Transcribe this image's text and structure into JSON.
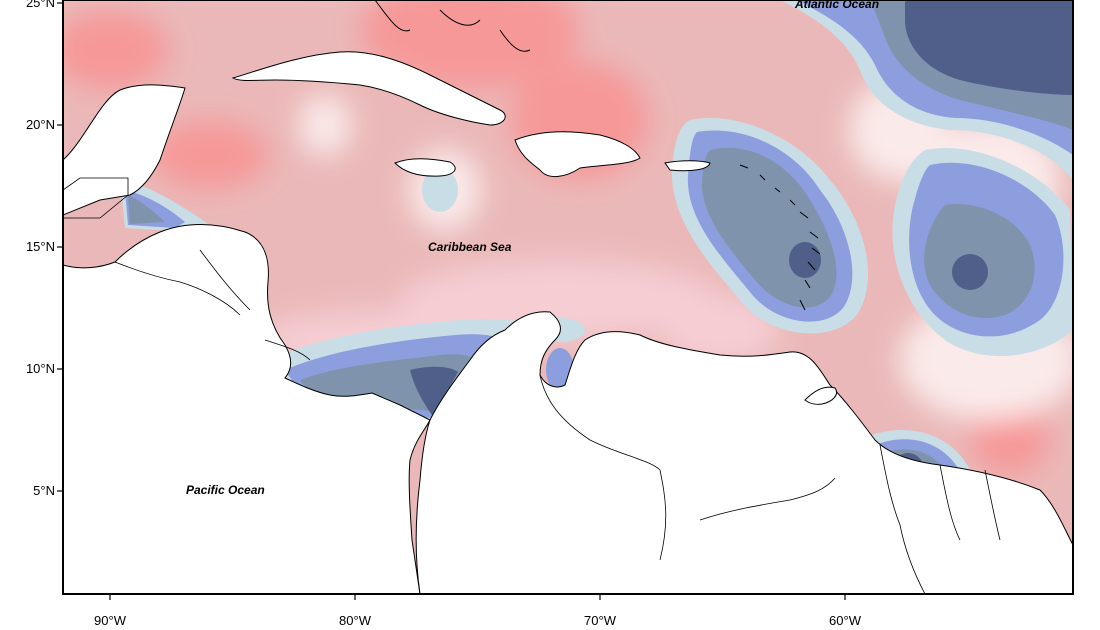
{
  "map": {
    "extent": {
      "lon": [
        -92,
        -51
      ],
      "lat": [
        1,
        25
      ]
    },
    "lat_ticks": [
      {
        "value": 25,
        "label": "25°N"
      },
      {
        "value": 20,
        "label": "20°N"
      },
      {
        "value": 15,
        "label": "15°N"
      },
      {
        "value": 10,
        "label": "10°N"
      },
      {
        "value": 5,
        "label": "5°N"
      }
    ],
    "lon_ticks": [
      {
        "value": -90,
        "label": "90°W"
      },
      {
        "value": -80,
        "label": "80°W"
      },
      {
        "value": -70,
        "label": "70°W"
      },
      {
        "value": -60,
        "label": "60°W"
      }
    ],
    "labels": {
      "caribbean": "Caribbean Sea",
      "pacific": "Pacific Ocean",
      "atlantic": "Atlantic Ocean"
    },
    "colors": {
      "strong_negative": "#4f5f89",
      "negative": "#7f93ad",
      "moderate_negative": "#8d9ede",
      "weak_negative": "#c9dde6",
      "neutral": "#fbeaea",
      "weak_positive": "#f5cdd3",
      "positive": "#eab8b8",
      "strong_positive": "#f69898"
    }
  }
}
